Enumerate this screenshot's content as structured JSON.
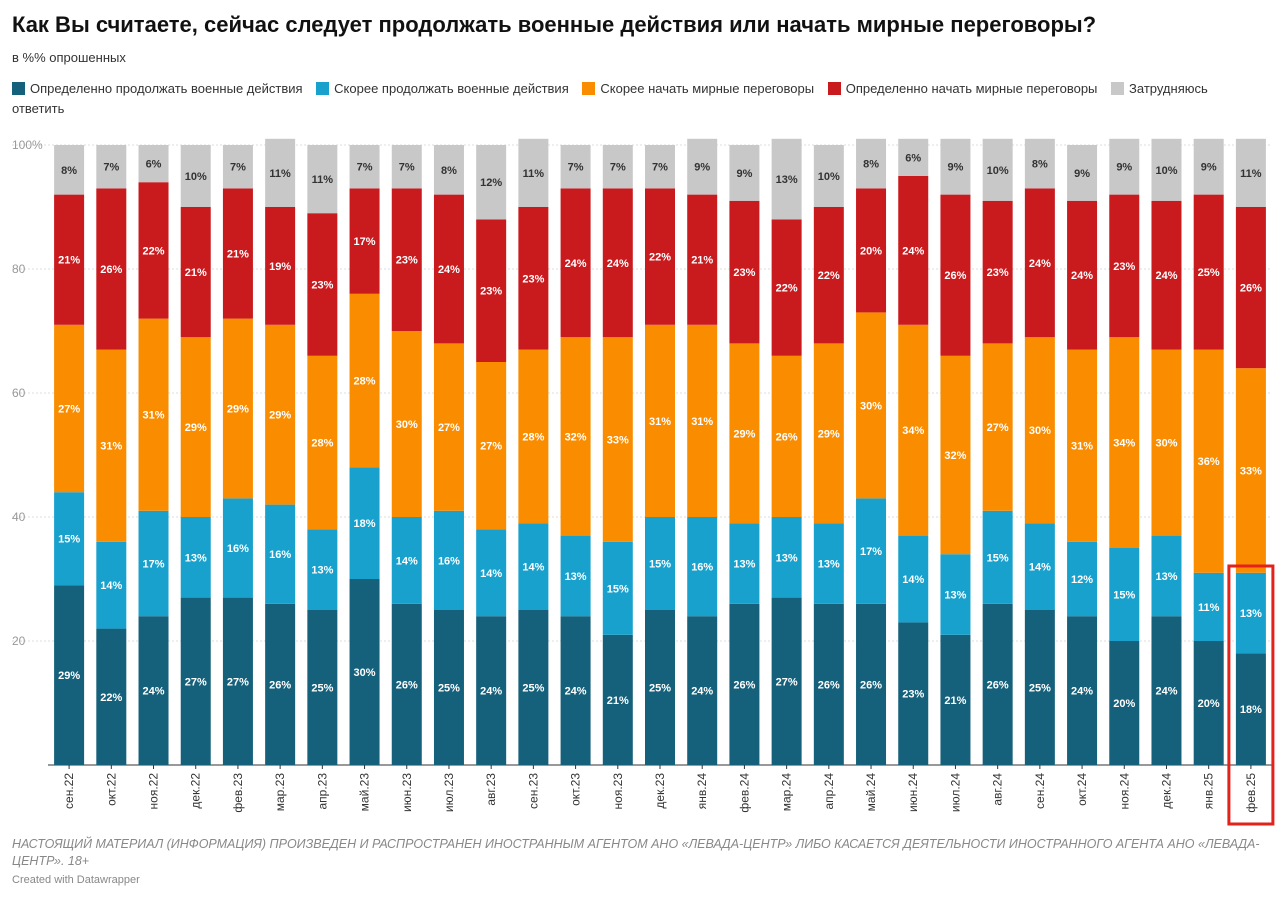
{
  "chart_data": {
    "type": "stacked_bar",
    "title": "Как Вы считаете, сейчас следует продолжать военные действия или начать мирные переговоры?",
    "subtitle": "в %% опрошенных",
    "note": "НАСТОЯЩИЙ МАТЕРИАЛ (ИНФОРМАЦИЯ) ПРОИЗВЕДЕН И РАСПРОСТРАНЕН ИНОСТРАННЫМ АГЕНТОМ АНО «ЛЕВАДА-ЦЕНТР» ЛИБО КАСАЕТСЯ ДЕЯТЕЛЬНОСТИ ИНОСТРАННОГО АГЕНТА АНО «ЛЕВАДА-ЦЕНТР». 18+",
    "credit": "Created with Datawrapper",
    "categories": [
      "сен.22",
      "окт.22",
      "ноя.22",
      "дек.22",
      "фев.23",
      "мар.23",
      "апр.23",
      "май.23",
      "июн.23",
      "июл.23",
      "авг.23",
      "сен.23",
      "окт.23",
      "ноя.23",
      "дек.23",
      "янв.24",
      "фев.24",
      "мар.24",
      "апр.24",
      "май.24",
      "июн.24",
      "июл.24",
      "авг.24",
      "сен.24",
      "окт.24",
      "ноя.24",
      "дек.24",
      "янв.25",
      "фев.25"
    ],
    "series": [
      {
        "name": "Определенно продолжать военные действия",
        "color": "#15607a",
        "values": [
          29,
          22,
          24,
          27,
          27,
          26,
          25,
          30,
          26,
          25,
          24,
          25,
          24,
          21,
          25,
          24,
          26,
          27,
          26,
          26,
          23,
          21,
          26,
          25,
          24,
          20,
          24,
          20,
          18
        ],
        "value_labels": [
          "29%",
          "22%",
          "24%",
          "27%",
          "27%",
          "26%",
          "25%",
          "30%",
          "26%",
          "25%",
          "24%",
          "25%",
          "24%",
          "21%",
          "25%",
          "24%",
          "26%",
          "27%",
          "26%",
          "26%",
          "23%",
          "21%",
          "26%",
          "25%",
          "24%",
          "20%",
          "24%",
          "20%",
          "18%"
        ]
      },
      {
        "name": "Скорее продолжать военные действия",
        "color": "#18a1cd",
        "values": [
          15,
          14,
          17,
          13,
          16,
          16,
          13,
          18,
          14,
          16,
          14,
          14,
          13,
          15,
          15,
          16,
          13,
          13,
          13,
          17,
          14,
          13,
          15,
          14,
          12,
          15,
          13,
          11,
          13
        ],
        "value_labels": [
          "15%",
          "14%",
          "17%",
          "13%",
          "16%",
          "16%",
          "13%",
          "18%",
          "14%",
          "16%",
          "14%",
          "14%",
          "13%",
          "15%",
          "15%",
          "16%",
          "13%",
          "13%",
          "13%",
          "17%",
          "14%",
          "13%",
          "15%",
          "14%",
          "12%",
          "15%",
          "13%",
          "11%",
          "13%"
        ]
      },
      {
        "name": "Скорее начать мирные переговоры",
        "color": "#fa8c00",
        "values": [
          27,
          31,
          31,
          29,
          29,
          29,
          28,
          28,
          30,
          27,
          27,
          28,
          32,
          33,
          31,
          31,
          29,
          26,
          29,
          30,
          34,
          32,
          27,
          30,
          31,
          34,
          30,
          36,
          33
        ],
        "value_labels": [
          "27%",
          "31%",
          "31%",
          "29%",
          "29%",
          "29%",
          "28%",
          "28%",
          "30%",
          "27%",
          "27%",
          "28%",
          "32%",
          "33%",
          "31%",
          "31%",
          "29%",
          "26%",
          "29%",
          "30%",
          "34%",
          "32%",
          "27%",
          "30%",
          "31%",
          "34%",
          "30%",
          "36%",
          "33%"
        ]
      },
      {
        "name": "Определенно начать мирные переговоры",
        "color": "#c91a1e",
        "values": [
          21,
          26,
          22,
          21,
          21,
          19,
          23,
          17,
          23,
          24,
          23,
          23,
          24,
          24,
          22,
          21,
          23,
          22,
          22,
          20,
          24,
          26,
          23,
          24,
          24,
          23,
          24,
          25,
          26
        ],
        "value_labels": [
          "21%",
          "26%",
          "22%",
          "21%",
          "21%",
          "19%",
          "23%",
          "17%",
          "23%",
          "24%",
          "23%",
          "23%",
          "24%",
          "24%",
          "22%",
          "21%",
          "23%",
          "22%",
          "22%",
          "20%",
          "24%",
          "26%",
          "23%",
          "24%",
          "24%",
          "23%",
          "24%",
          "25%",
          "26%"
        ]
      },
      {
        "name": "Затрудняюсь ответить",
        "color": "#c8c8c8",
        "values": [
          8,
          7,
          6,
          10,
          7,
          11,
          11,
          7,
          7,
          8,
          12,
          11,
          7,
          7,
          7,
          9,
          9,
          13,
          10,
          8,
          6,
          9,
          10,
          8,
          9,
          9,
          10,
          9,
          11
        ],
        "value_labels": [
          "8%",
          "7%",
          "6%",
          "10%",
          "7%",
          "11%",
          "11%",
          "7%",
          "7%",
          "8%",
          "12%",
          "11%",
          "7%",
          "7%",
          "7%",
          "9%",
          "9%",
          "13%",
          "10%",
          "8%",
          "6%",
          "9%",
          "10%",
          "8%",
          "9%",
          "9%",
          "10%",
          "9%",
          "11%"
        ]
      }
    ],
    "ylim": [
      0,
      100
    ],
    "yticks": [
      20,
      40,
      60,
      80,
      {
        "value": 100,
        "label": "100%"
      }
    ],
    "grid": true
  }
}
